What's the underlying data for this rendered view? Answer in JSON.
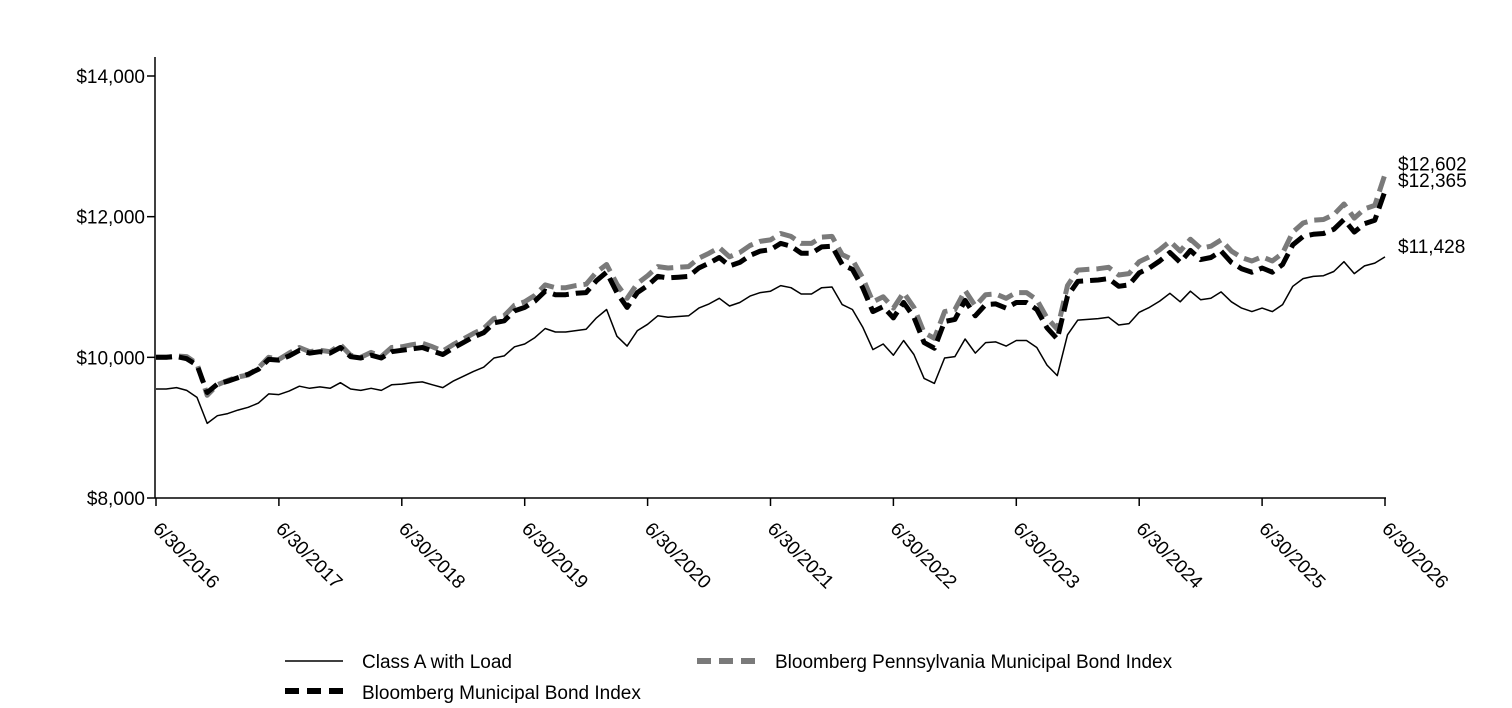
{
  "chart_data": {
    "type": "line",
    "title": "",
    "xlabel": "",
    "ylabel": "",
    "ylim": [
      8000,
      14000
    ],
    "yticks": [
      {
        "value": 8000,
        "label": "$8,000"
      },
      {
        "value": 10000,
        "label": "$10,000"
      },
      {
        "value": 12000,
        "label": "$12,000"
      },
      {
        "value": 14000,
        "label": "$14,000"
      }
    ],
    "xticks": [
      {
        "t": 0,
        "label": "6/30/2016"
      },
      {
        "t": 12,
        "label": "6/30/2017"
      },
      {
        "t": 24,
        "label": "6/30/2018"
      },
      {
        "t": 36,
        "label": "6/30/2019"
      },
      {
        "t": 48,
        "label": "6/30/2020"
      },
      {
        "t": 60,
        "label": "6/30/2021"
      },
      {
        "t": 72,
        "label": "6/30/2022"
      },
      {
        "t": 84,
        "label": "6/30/2023"
      },
      {
        "t": 96,
        "label": "6/30/2024"
      },
      {
        "t": 108,
        "label": "6/30/2025"
      },
      {
        "t": 120,
        "label": "6/30/2026"
      }
    ],
    "x_note": "monthly observations from 6/30/2016 to 6/30/2026",
    "grid": false,
    "legend_position": "bottom",
    "series": [
      {
        "name": "Class A with Load",
        "color": "#000000",
        "style": "solid",
        "end_label": "$11,428",
        "values": [
          9550,
          9550,
          9570,
          9530,
          9430,
          9060,
          9170,
          9200,
          9250,
          9290,
          9350,
          9480,
          9470,
          9520,
          9590,
          9560,
          9580,
          9560,
          9640,
          9550,
          9530,
          9560,
          9530,
          9610,
          9620,
          9640,
          9650,
          9610,
          9570,
          9660,
          9730,
          9800,
          9860,
          9990,
          10020,
          10150,
          10190,
          10280,
          10410,
          10360,
          10360,
          10380,
          10400,
          10560,
          10680,
          10300,
          10160,
          10380,
          10470,
          10590,
          10570,
          10580,
          10590,
          10700,
          10760,
          10840,
          10730,
          10780,
          10870,
          10920,
          10940,
          11020,
          10990,
          10900,
          10900,
          10990,
          11000,
          10750,
          10680,
          10430,
          10110,
          10190,
          10030,
          10240,
          10040,
          9700,
          9630,
          9990,
          10010,
          10260,
          10060,
          10210,
          10220,
          10160,
          10240,
          10240,
          10140,
          9890,
          9740,
          10320,
          10530,
          10540,
          10550,
          10570,
          10460,
          10480,
          10640,
          10710,
          10800,
          10910,
          10790,
          10940,
          10820,
          10840,
          10930,
          10790,
          10700,
          10650,
          10700,
          10650,
          10750,
          11010,
          11120,
          11150,
          11160,
          11220,
          11360,
          11190,
          11300,
          11340,
          11428
        ]
      },
      {
        "name": "Bloomberg Municipal Bond Index",
        "color": "#000000",
        "style": "dashed",
        "end_label": "$12,365",
        "values": [
          10000,
          10000,
          10010,
          9980,
          9890,
          9500,
          9620,
          9660,
          9710,
          9760,
          9830,
          9970,
          9960,
          10020,
          10100,
          10060,
          10080,
          10060,
          10140,
          10010,
          9990,
          10030,
          9990,
          10080,
          10100,
          10120,
          10140,
          10090,
          10040,
          10130,
          10210,
          10290,
          10350,
          10490,
          10520,
          10660,
          10710,
          10800,
          10940,
          10890,
          10890,
          10910,
          10920,
          11090,
          11210,
          10920,
          10710,
          10920,
          11020,
          11150,
          11130,
          11140,
          11150,
          11270,
          11340,
          11420,
          11300,
          11350,
          11450,
          11510,
          11530,
          11620,
          11580,
          11480,
          11480,
          11570,
          11580,
          11320,
          11250,
          10990,
          10650,
          10720,
          10560,
          10780,
          10570,
          10210,
          10130,
          10510,
          10540,
          10810,
          10590,
          10750,
          10760,
          10700,
          10780,
          10780,
          10680,
          10420,
          10260,
          10870,
          11080,
          11090,
          11100,
          11120,
          11010,
          11030,
          11200,
          11270,
          11370,
          11490,
          11350,
          11520,
          11390,
          11420,
          11510,
          11350,
          11260,
          11210,
          11270,
          11210,
          11320,
          11600,
          11720,
          11750,
          11760,
          11820,
          11960,
          11780,
          11900,
          11950,
          12365
        ]
      },
      {
        "name": "Bloomberg Pennsylvania Municipal Bond Index",
        "color": "#7a7a7a",
        "style": "dashed",
        "end_label": "$12,602",
        "values": [
          10000,
          10000,
          10020,
          10010,
          9910,
          9460,
          9610,
          9670,
          9720,
          9750,
          9850,
          10000,
          9970,
          10060,
          10140,
          10080,
          10100,
          10080,
          10180,
          10030,
          10000,
          10070,
          10010,
          10140,
          10150,
          10180,
          10200,
          10150,
          10090,
          10180,
          10260,
          10340,
          10410,
          10550,
          10590,
          10740,
          10790,
          10880,
          11030,
          10990,
          10990,
          11020,
          11040,
          11210,
          11320,
          11040,
          10840,
          11050,
          11160,
          11290,
          11270,
          11280,
          11290,
          11410,
          11480,
          11560,
          11430,
          11490,
          11590,
          11650,
          11670,
          11760,
          11720,
          11620,
          11620,
          11710,
          11720,
          11460,
          11390,
          11130,
          10790,
          10860,
          10700,
          10920,
          10710,
          10350,
          10270,
          10650,
          10680,
          10950,
          10730,
          10890,
          10900,
          10840,
          10920,
          10920,
          10820,
          10560,
          10400,
          11020,
          11240,
          11250,
          11260,
          11280,
          11170,
          11190,
          11360,
          11430,
          11530,
          11650,
          11510,
          11680,
          11550,
          11580,
          11670,
          11510,
          11420,
          11370,
          11430,
          11370,
          11480,
          11780,
          11910,
          11950,
          11960,
          12030,
          12180,
          11980,
          12110,
          12160,
          12602
        ]
      }
    ]
  }
}
